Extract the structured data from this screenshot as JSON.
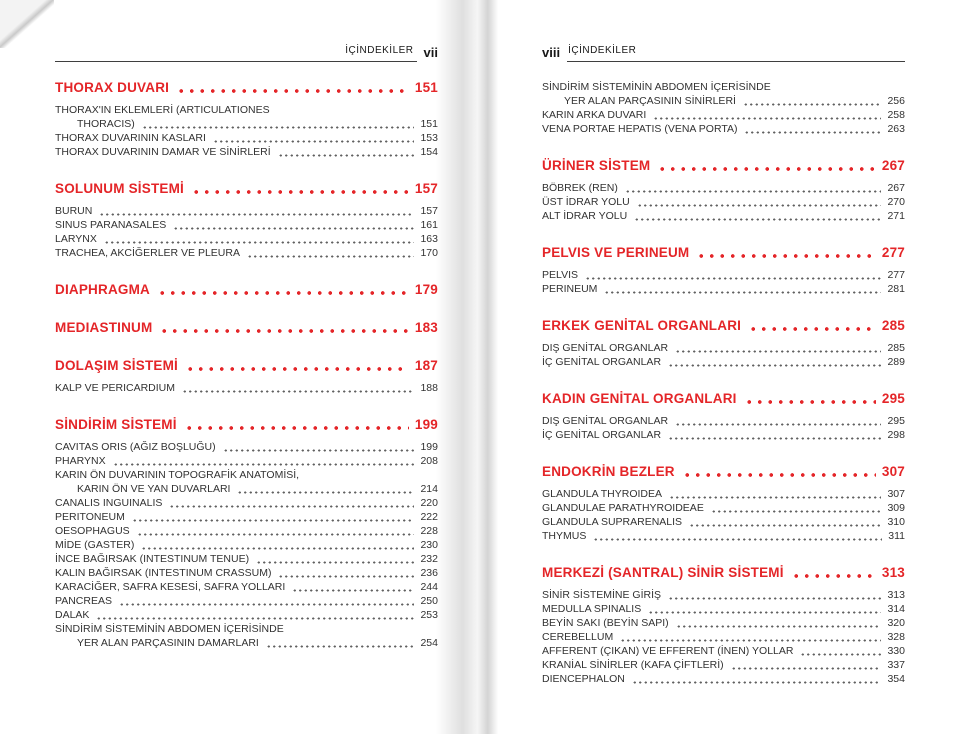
{
  "book": {
    "accent_red": "#e42528",
    "text_color": "#323232",
    "rule_color": "#3f3f3f",
    "left_page": {
      "header": {
        "label": "İÇİNDEKİLER",
        "folio": "vii"
      },
      "sections": [
        {
          "title": "THORAX DUVARI",
          "page": "151",
          "entries": [
            {
              "text": "THORAX'IN EKLEMLERİ (ARTICULATIONES",
              "text2": "THORACIS)",
              "page": "151"
            },
            {
              "text": "THORAX DUVARININ KASLARI",
              "page": "153"
            },
            {
              "text": "THORAX DUVARININ DAMAR VE SİNİRLERİ",
              "page": "154"
            }
          ]
        },
        {
          "title": "SOLUNUM SİSTEMİ",
          "page": "157",
          "entries": [
            {
              "text": "BURUN",
              "page": "157"
            },
            {
              "text": "SINUS PARANASALES",
              "page": "161"
            },
            {
              "text": "LARYNX",
              "page": "163"
            },
            {
              "text": "TRACHEA, AKCİĞERLER VE PLEURA",
              "page": "170"
            }
          ]
        },
        {
          "title": "DIAPHRAGMA",
          "page": "179",
          "entries": []
        },
        {
          "title": "MEDIASTINUM",
          "page": "183",
          "entries": []
        },
        {
          "title": "DOLAŞIM SİSTEMİ",
          "page": "187",
          "entries": [
            {
              "text": "KALP VE PERICARDIUM",
              "page": "188"
            }
          ]
        },
        {
          "title": "SİNDİRİM SİSTEMİ",
          "page": "199",
          "entries": [
            {
              "text": "CAVITAS ORIS (AĞIZ BOŞLUĞU)",
              "page": "199"
            },
            {
              "text": "PHARYNX",
              "page": "208"
            },
            {
              "text": "KARIN ÖN DUVARININ TOPOGRAFİK ANATOMİSİ,",
              "text2": "KARIN ÖN VE YAN DUVARLARI",
              "page": "214"
            },
            {
              "text": "CANALIS INGUINALIS",
              "page": "220"
            },
            {
              "text": "PERITONEUM",
              "page": "222"
            },
            {
              "text": "OESOPHAGUS",
              "page": "228"
            },
            {
              "text": "MİDE (GASTER)",
              "page": "230"
            },
            {
              "text": "İNCE BAĞIRSAK (INTESTINUM TENUE)",
              "page": "232"
            },
            {
              "text": "KALIN BAĞIRSAK (INTESTINUM CRASSUM)",
              "page": "236"
            },
            {
              "text": "KARACİĞER, SAFRA KESESİ, SAFRA YOLLARI",
              "page": "244"
            },
            {
              "text": "PANCREAS",
              "page": "250"
            },
            {
              "text": "DALAK",
              "page": "253"
            },
            {
              "text": "SİNDİRİM SİSTEMİNİN ABDOMEN İÇERİSİNDE",
              "text2": "YER ALAN PARÇASININ DAMARLARI",
              "page": "254"
            }
          ]
        }
      ]
    },
    "right_page": {
      "header": {
        "label": "İÇİNDEKİLER",
        "folio": "viii"
      },
      "sections": [
        {
          "title": null,
          "page": null,
          "entries": [
            {
              "text": "SİNDİRİM SİSTEMİNİN ABDOMEN İÇERİSİNDE",
              "text2": "YER ALAN PARÇASININ SİNİRLERİ",
              "page": "256"
            },
            {
              "text": "KARIN ARKA DUVARI",
              "page": "258"
            },
            {
              "text": "VENA PORTAE HEPATIS (VENA PORTA)",
              "page": "263"
            }
          ]
        },
        {
          "title": "ÜRİNER SİSTEM",
          "page": "267",
          "entries": [
            {
              "text": "BÖBREK (REN)",
              "page": "267"
            },
            {
              "text": "ÜST İDRAR YOLU",
              "page": "270"
            },
            {
              "text": "ALT İDRAR YOLU",
              "page": "271"
            }
          ]
        },
        {
          "title": "PELVIS VE PERINEUM",
          "page": "277",
          "entries": [
            {
              "text": "PELVIS",
              "page": "277"
            },
            {
              "text": "PERINEUM",
              "page": "281"
            }
          ]
        },
        {
          "title": "ERKEK GENİTAL ORGANLARI",
          "page": "285",
          "entries": [
            {
              "text": "DIŞ GENİTAL ORGANLAR",
              "page": "285"
            },
            {
              "text": "İÇ GENİTAL ORGANLAR",
              "page": "289"
            }
          ]
        },
        {
          "title": "KADIN GENİTAL ORGANLARI",
          "page": "295",
          "entries": [
            {
              "text": "DIŞ GENİTAL ORGANLAR",
              "page": "295"
            },
            {
              "text": "İÇ GENİTAL ORGANLAR",
              "page": "298"
            }
          ]
        },
        {
          "title": "ENDOKRİN BEZLER",
          "page": "307",
          "entries": [
            {
              "text": "GLANDULA THYROIDEA",
              "page": "307"
            },
            {
              "text": "GLANDULAE PARATHYROIDEAE",
              "page": "309"
            },
            {
              "text": "GLANDULA SUPRARENALIS",
              "page": "310"
            },
            {
              "text": "THYMUS",
              "page": "311"
            }
          ]
        },
        {
          "title": "MERKEZİ (SANTRAL) SİNİR SİSTEMİ",
          "page": "313",
          "entries": [
            {
              "text": "SİNİR SİSTEMİNE GİRİŞ",
              "page": "313"
            },
            {
              "text": "MEDULLA SPINALIS",
              "page": "314"
            },
            {
              "text": "BEYİN SAKI (BEYİN SAPI)",
              "page": "320"
            },
            {
              "text": "CEREBELLUM",
              "page": "328"
            },
            {
              "text": "AFFERENT (ÇIKAN) VE EFFERENT (İNEN) YOLLAR",
              "page": "330"
            },
            {
              "text": "KRANİAL SİNİRLER (KAFA ÇİFTLERİ)",
              "page": "337"
            },
            {
              "text": "DIENCEPHALON",
              "page": "354"
            }
          ]
        }
      ]
    }
  }
}
